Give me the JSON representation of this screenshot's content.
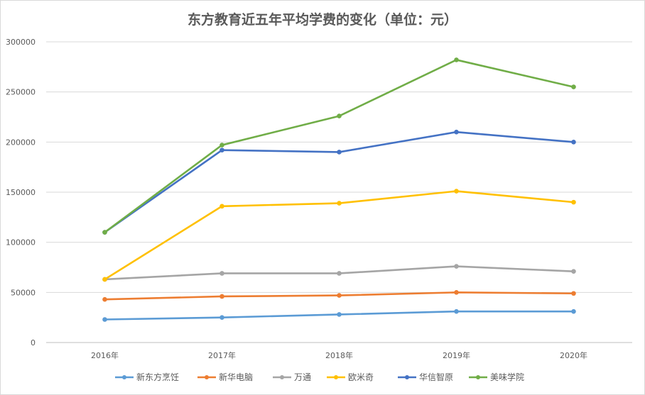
{
  "chart_data": {
    "type": "line",
    "title": "东方教育近五年平均学费的变化（单位：元）",
    "xlabel": "",
    "ylabel": "",
    "categories": [
      "2016年",
      "2017年",
      "2018年",
      "2019年",
      "2020年"
    ],
    "ylim": [
      0,
      300000
    ],
    "yticks": [
      "0",
      "50000",
      "100000",
      "150000",
      "200000",
      "250000",
      "300000"
    ],
    "grid": true,
    "legend_position": "bottom",
    "series": [
      {
        "name": "新东方烹饪",
        "color": "#5b9bd5",
        "values": [
          23000,
          25000,
          28000,
          31000,
          31000
        ]
      },
      {
        "name": "新华电脑",
        "color": "#ed7d31",
        "values": [
          43000,
          46000,
          47000,
          50000,
          49000
        ]
      },
      {
        "name": "万通",
        "color": "#a5a5a5",
        "values": [
          63000,
          69000,
          69000,
          76000,
          71000
        ]
      },
      {
        "name": "欧米奇",
        "color": "#ffc000",
        "values": [
          63000,
          136000,
          139000,
          151000,
          140000
        ]
      },
      {
        "name": "华信智原",
        "color": "#4472c4",
        "values": [
          110000,
          192000,
          190000,
          210000,
          200000
        ]
      },
      {
        "name": "美味学院",
        "color": "#70ad47",
        "values": [
          110000,
          197000,
          226000,
          282000,
          255000
        ]
      }
    ]
  }
}
